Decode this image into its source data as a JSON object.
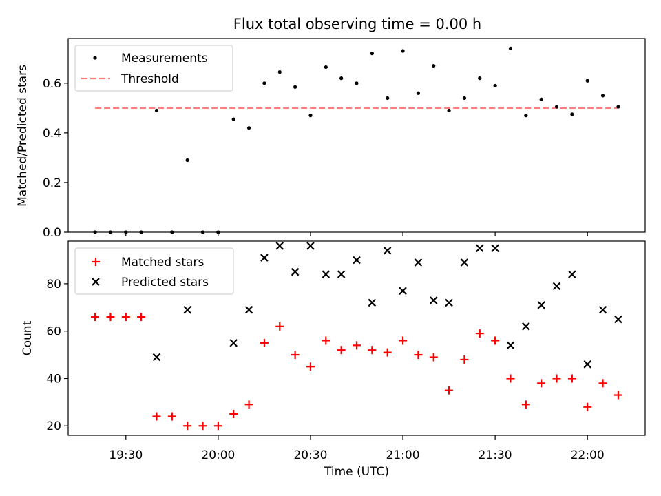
{
  "chart_data": {
    "type": "scatter",
    "title": "Flux total observing time = 0.00 h",
    "xlabel": "Time (UTC)",
    "x_ticks": [
      "19:30",
      "20:00",
      "20:30",
      "21:00",
      "21:30",
      "22:00"
    ],
    "x_ticks_minutes": [
      1170,
      1200,
      1230,
      1260,
      1290,
      1320
    ],
    "xlim_minutes": [
      1151.25,
      1338.75
    ],
    "times": [
      "19:20",
      "19:25",
      "19:30",
      "19:35",
      "19:40",
      "19:45",
      "19:50",
      "19:55",
      "20:00",
      "20:05",
      "20:10",
      "20:15",
      "20:20",
      "20:25",
      "20:30",
      "20:35",
      "20:40",
      "20:45",
      "20:50",
      "20:55",
      "21:00",
      "21:05",
      "21:10",
      "21:15",
      "21:20",
      "21:25",
      "21:30",
      "21:35",
      "21:40",
      "21:45",
      "21:50",
      "21:55",
      "22:00",
      "22:05",
      "22:10"
    ],
    "top": {
      "ylabel": "Matched/Predicted stars",
      "ylim": [
        0,
        0.78
      ],
      "yticks": [
        "0.0",
        "0.2",
        "0.4",
        "0.6"
      ],
      "ytick_values": [
        0,
        0.2,
        0.4,
        0.6
      ],
      "legend_position": "upper-left",
      "threshold": {
        "name": "Threshold",
        "value": 0.5,
        "color": "#ff7f7f"
      },
      "measurements": {
        "name": "Measurements",
        "color": "#000000",
        "values": [
          0,
          0,
          0,
          0,
          0.49,
          0,
          0.29,
          0,
          0,
          0.455,
          0.42,
          0.6,
          0.645,
          0.585,
          0.47,
          0.665,
          0.62,
          0.6,
          0.72,
          0.54,
          0.73,
          0.56,
          0.67,
          0.49,
          0.54,
          0.62,
          0.59,
          0.74,
          0.47,
          0.535,
          0.505,
          0.475,
          0.61,
          0.55,
          0.505
        ]
      }
    },
    "bottom": {
      "ylabel": "Count",
      "ylim": [
        16,
        98
      ],
      "yticks": [
        "20",
        "40",
        "60",
        "80"
      ],
      "ytick_values": [
        20,
        40,
        60,
        80
      ],
      "legend_position": "upper-left",
      "series": [
        {
          "name": "Matched stars",
          "marker": "+",
          "color": "#ff0000",
          "values": [
            66,
            66,
            66,
            66,
            24,
            24,
            20,
            20,
            20,
            25,
            29,
            55,
            62,
            50,
            45,
            56,
            52,
            54,
            52,
            51,
            56,
            50,
            49,
            35,
            48,
            59,
            56,
            40,
            29,
            38,
            40,
            40,
            28,
            38,
            33
          ]
        },
        {
          "name": "Predicted stars",
          "marker": "x",
          "color": "#000000",
          "values": [
            null,
            null,
            null,
            null,
            49,
            null,
            69,
            null,
            null,
            55,
            69,
            91,
            96,
            85,
            96,
            84,
            84,
            90,
            72,
            94,
            77,
            89,
            73,
            72,
            89,
            95,
            95,
            54,
            62,
            71,
            79,
            84,
            46,
            69,
            65
          ]
        }
      ]
    }
  }
}
